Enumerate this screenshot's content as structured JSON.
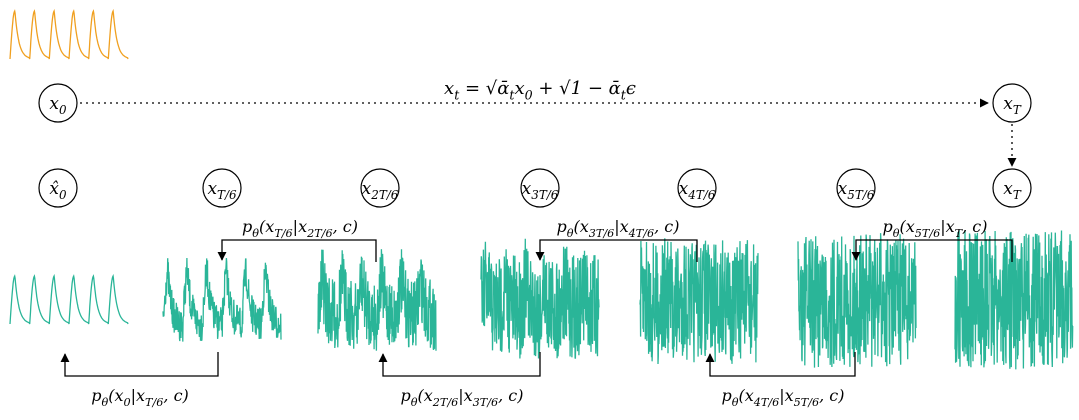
{
  "formula": [
    "x",
    "t",
    " = √ᾱ",
    "t",
    "x",
    "0",
    " + √1 − ᾱ",
    "t",
    "ϵ"
  ],
  "top_nodes": [
    [
      "x",
      "0"
    ],
    [
      "x",
      "T"
    ]
  ],
  "nodes": [
    [
      "x̂",
      "0"
    ],
    [
      "x",
      "T/6"
    ],
    [
      "x",
      "2T/6"
    ],
    [
      "x",
      "3T/6"
    ],
    [
      "x",
      "4T/6"
    ],
    [
      "x",
      "5T/6"
    ],
    [
      "x",
      "T"
    ]
  ],
  "upper_labels": [
    [
      "p",
      "θ",
      "(x",
      "T/6",
      "|x",
      "2T/6",
      ", c)"
    ],
    [
      "p",
      "θ",
      "(x",
      "3T/6",
      "|x",
      "4T/6",
      ", c)"
    ],
    [
      "p",
      "θ",
      "(x",
      "5T/6",
      "|x",
      "T",
      ", c)"
    ]
  ],
  "lower_labels": [
    [
      "p",
      "θ",
      "(x",
      "0",
      "|x",
      "T/6",
      ", c)"
    ],
    [
      "p",
      "θ",
      "(x",
      "2T/6",
      "|x",
      "3T/6",
      ", c)"
    ],
    [
      "p",
      "θ",
      "(x",
      "4T/6",
      "|x",
      "5T/6",
      ", c)"
    ]
  ]
}
